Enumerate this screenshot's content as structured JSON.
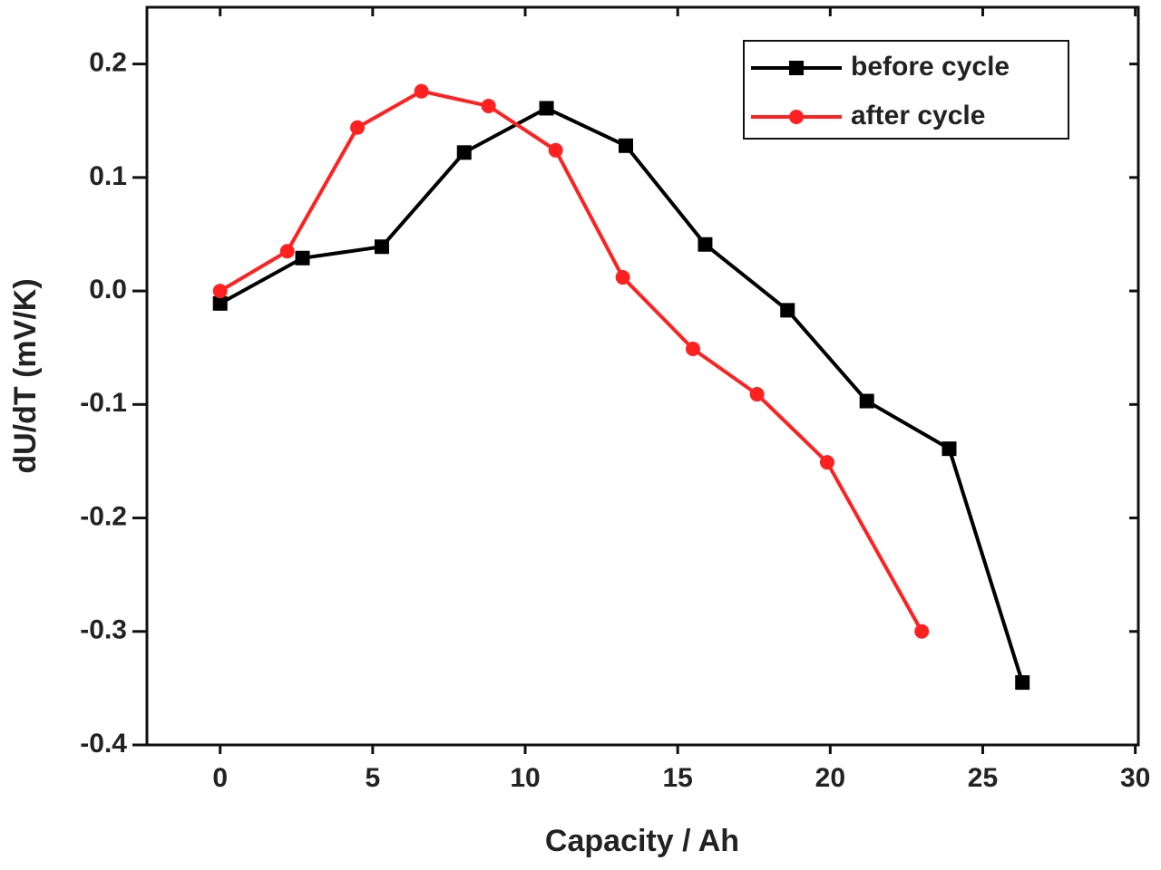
{
  "chart_data": {
    "type": "line",
    "xlabel": "Capacity / Ah",
    "ylabel": "dU/dT (mV/K)",
    "xlim": [
      -2.4,
      30.1
    ],
    "ylim": [
      -0.4,
      0.25
    ],
    "xticks": [
      0,
      5,
      10,
      15,
      20,
      25,
      30
    ],
    "yticks": [
      0.2,
      0.1,
      {
        "value": 0,
        "label": "0.0"
      },
      -0.1,
      -0.2,
      -0.3,
      -0.4
    ],
    "legend": "upper right",
    "series": [
      {
        "name": "before cycle",
        "color": "#000000",
        "marker": "square",
        "x": [
          0,
          2.7,
          5.3,
          8.0,
          10.7,
          13.3,
          15.9,
          18.6,
          21.2,
          23.9,
          26.3
        ],
        "values": [
          -0.011,
          0.029,
          0.039,
          0.122,
          0.161,
          0.128,
          0.041,
          -0.017,
          -0.097,
          -0.139,
          -0.345
        ]
      },
      {
        "name": "after cycle",
        "color": "#ff2020",
        "marker": "circle",
        "x": [
          0,
          2.2,
          4.5,
          6.6,
          8.8,
          11.0,
          13.2,
          15.5,
          17.6,
          19.9,
          23.0
        ],
        "values": [
          0,
          0.035,
          0.144,
          0.176,
          0.163,
          0.124,
          0.012,
          -0.051,
          -0.091,
          -0.151,
          -0.3
        ]
      }
    ]
  }
}
